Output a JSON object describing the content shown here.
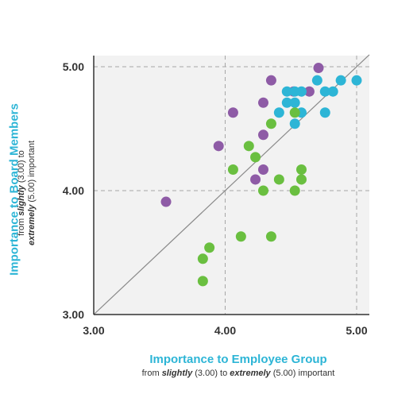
{
  "chart_data": {
    "type": "scatter",
    "xlabel": "Importance to Employee Group",
    "xlabel_sub": {
      "prefix": "from ",
      "low_word": "slightly",
      "low_value": " (3.00) to ",
      "high_word": "extremely",
      "high_value": " (5.00) important"
    },
    "ylabel": "Importance to Board Members",
    "ylabel_sub": {
      "prefix": "from ",
      "low_word": "slightly",
      "low_value": " (3.00) to ",
      "high_word": "extremely",
      "high_value": " (5.00) important"
    },
    "xlim": [
      3.0,
      5.0
    ],
    "ylim": [
      3.0,
      5.0
    ],
    "x_ticks": [
      "3.00",
      "4.00",
      "5.00"
    ],
    "y_ticks": [
      "3.00",
      "4.00",
      "5.00"
    ],
    "grid": "dashed at 4.00 and 5.00",
    "reference_line": "y = x",
    "series": [
      {
        "color": "#8e5ba6",
        "points": [
          [
            3.55,
            3.91
          ],
          [
            3.95,
            4.36
          ],
          [
            4.06,
            4.63
          ],
          [
            4.29,
            4.71
          ],
          [
            4.35,
            4.89
          ],
          [
            4.29,
            4.45
          ],
          [
            4.29,
            4.17
          ],
          [
            4.23,
            4.09
          ],
          [
            4.52,
            4.8
          ],
          [
            4.64,
            4.8
          ],
          [
            4.71,
            4.99
          ]
        ]
      },
      {
        "color": "#2db5d6",
        "points": [
          [
            4.41,
            4.63
          ],
          [
            4.47,
            4.8
          ],
          [
            4.47,
            4.71
          ],
          [
            4.53,
            4.8
          ],
          [
            4.53,
            4.71
          ],
          [
            4.53,
            4.54
          ],
          [
            4.58,
            4.8
          ],
          [
            4.58,
            4.63
          ],
          [
            4.7,
            4.89
          ],
          [
            4.76,
            4.8
          ],
          [
            4.76,
            4.63
          ],
          [
            4.82,
            4.8
          ],
          [
            4.88,
            4.89
          ],
          [
            5.0,
            4.89
          ]
        ]
      },
      {
        "color": "#6abf40",
        "points": [
          [
            3.83,
            3.45
          ],
          [
            3.83,
            3.27
          ],
          [
            3.88,
            3.54
          ],
          [
            4.06,
            4.17
          ],
          [
            4.12,
            3.63
          ],
          [
            4.18,
            4.36
          ],
          [
            4.23,
            4.27
          ],
          [
            4.29,
            4.0
          ],
          [
            4.35,
            4.54
          ],
          [
            4.35,
            3.63
          ],
          [
            4.41,
            4.09
          ],
          [
            4.53,
            4.63
          ],
          [
            4.53,
            4.0
          ],
          [
            4.58,
            4.17
          ],
          [
            4.58,
            4.09
          ]
        ]
      }
    ],
    "colors": {
      "accent_title": "#2db5d6",
      "plot_background": "#f2f2f2",
      "axis": "#333333"
    }
  }
}
